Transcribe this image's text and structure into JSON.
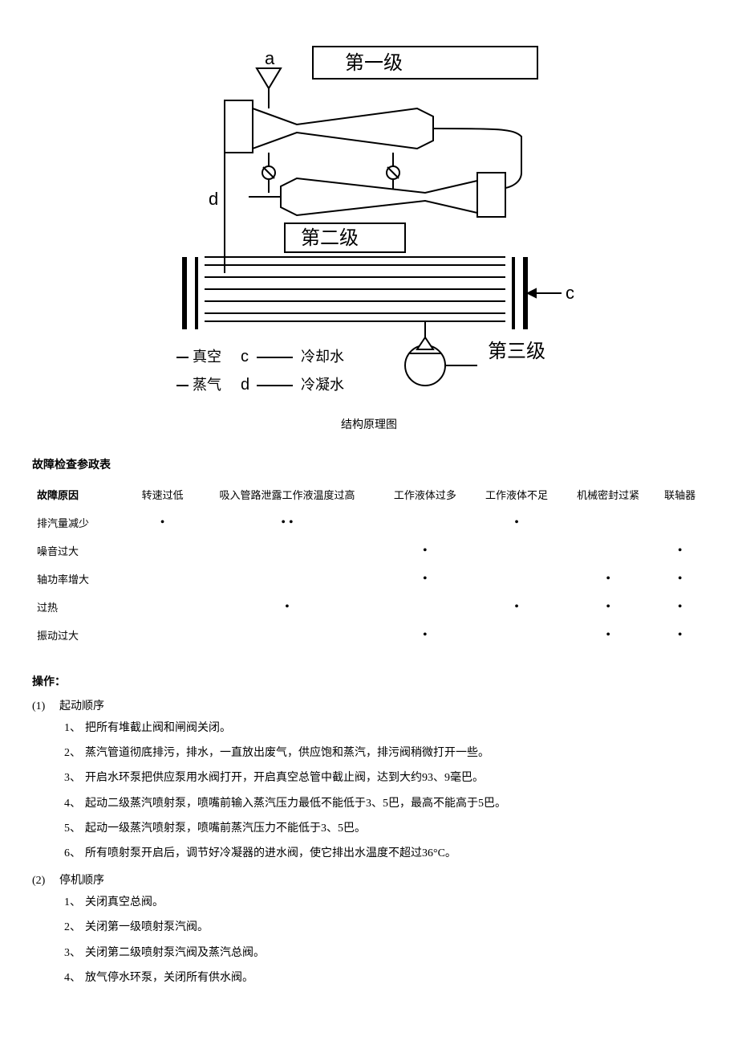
{
  "diagram": {
    "caption": "结构原理图",
    "labels": {
      "a": "a",
      "c_right": "c",
      "stage1": "第一级",
      "stage2": "第二级",
      "stage3": "第三级",
      "legend_vacuum": "真空",
      "legend_steam": "蒸气",
      "legend_c": "c",
      "legend_d": "d",
      "legend_cool": "冷却水",
      "legend_cond": "冷凝水",
      "d_pipe": "d"
    },
    "colors": {
      "stroke": "#000000",
      "bg": "#ffffff"
    }
  },
  "fault": {
    "title": "故障检查参政表",
    "row_label": "故障原因",
    "columns": [
      "转速过低",
      "吸入管路泄露工作液温度过高",
      "工作液体过多",
      "工作液体不足",
      "机械密封过紧",
      "联轴器"
    ],
    "rows": [
      {
        "label": "排汽量减少",
        "dots": [
          1,
          2,
          0,
          1,
          0,
          0
        ]
      },
      {
        "label": "噪音过大",
        "dots": [
          0,
          0,
          1,
          0,
          0,
          1
        ]
      },
      {
        "label": "轴功率增大",
        "dots": [
          0,
          0,
          1,
          0,
          1,
          1
        ]
      },
      {
        "label": "过热",
        "dots": [
          0,
          1,
          0,
          1,
          1,
          1
        ]
      },
      {
        "label": "振动过大",
        "dots": [
          0,
          0,
          1,
          0,
          1,
          1
        ]
      }
    ]
  },
  "ops": {
    "title": "操作：",
    "sections": [
      {
        "num": "(1)",
        "label": "起动顺序",
        "steps": [
          {
            "n": "1、",
            "t": "把所有堆截止阀和闸阀关闭。"
          },
          {
            "n": "2、",
            "t": "蒸汽管道彻底排污，排水，一直放出废气，供应饱和蒸汽，排污阀稍微打开一些。"
          },
          {
            "n": "3、",
            "t": "开启水环泵把供应泵用水阀打开，开启真空总管中截止阀，达到大约93、9毫巴。"
          },
          {
            "n": "4、",
            "t": "起动二级蒸汽喷射泵，喷嘴前输入蒸汽压力最低不能低于3、5巴，最高不能高于5巴。"
          },
          {
            "n": "5、",
            "t": "起动一级蒸汽喷射泵，喷嘴前蒸汽压力不能低于3、5巴。"
          },
          {
            "n": "6、",
            "t": "所有喷射泵开启后，调节好冷凝器的进水阀，使它排出水温度不超过36°C。"
          }
        ]
      },
      {
        "num": "(2)",
        "label": "停机顺序",
        "steps": [
          {
            "n": "1、",
            "t": "关闭真空总阀。"
          },
          {
            "n": "2、",
            "t": "关闭第一级喷射泵汽阀。"
          },
          {
            "n": "3、",
            "t": "关闭第二级喷射泵汽阀及蒸汽总阀。"
          },
          {
            "n": "4、",
            "t": "放气停水环泵，关闭所有供水阀。"
          }
        ]
      }
    ]
  }
}
